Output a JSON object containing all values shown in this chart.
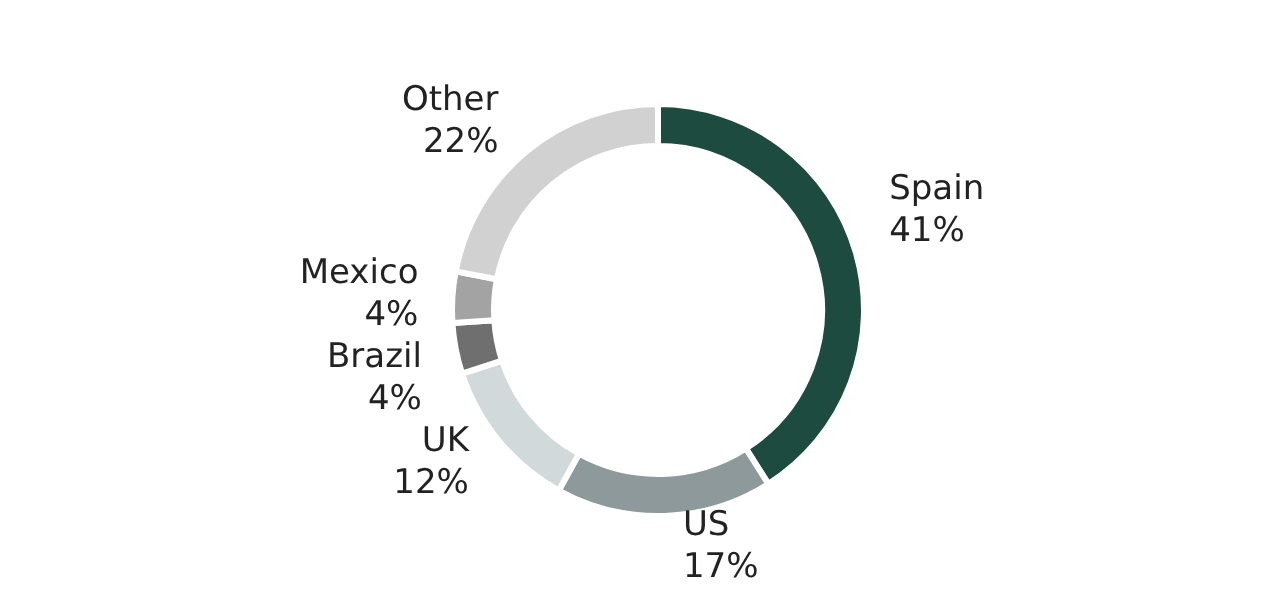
{
  "chart_data": {
    "type": "donut",
    "categories": [
      "Spain",
      "US",
      "UK",
      "Brazil",
      "Mexico",
      "Other"
    ],
    "values": [
      41,
      17,
      12,
      4,
      4,
      22
    ],
    "value_labels": [
      "41%",
      "17%",
      "12%",
      "4%",
      "4%",
      "22%"
    ],
    "colors": [
      "#1e4b3f",
      "#8e999b",
      "#d2d9da",
      "#6f6f6f",
      "#a3a3a3",
      "#d1d1d1"
    ]
  }
}
